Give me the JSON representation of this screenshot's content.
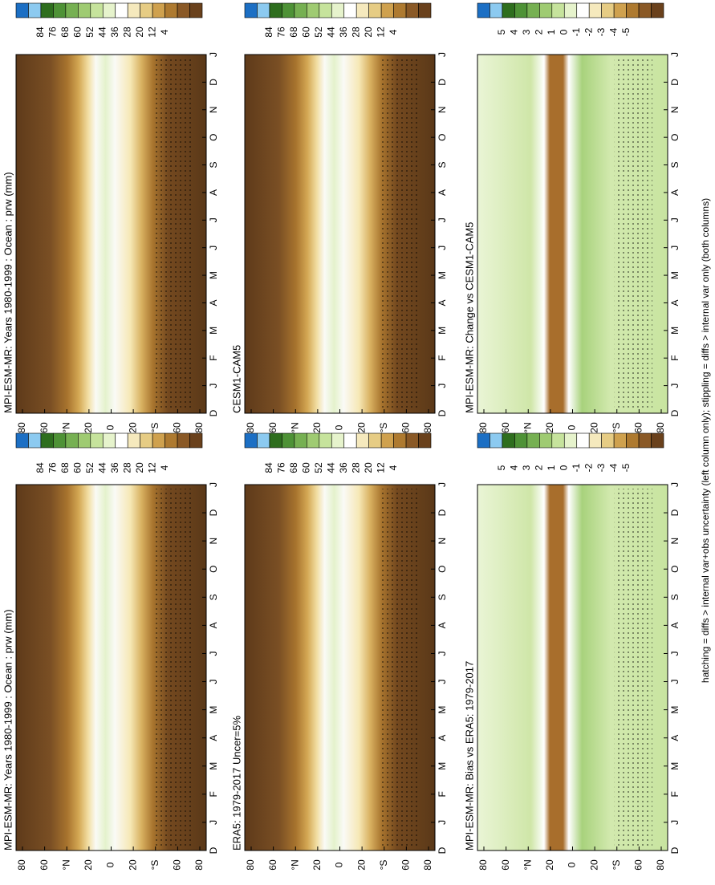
{
  "panels": [
    {
      "title": "MPI-ESM-MR: Years 1980-1999 : Ocean : prw (mm)",
      "kind": "abs"
    },
    {
      "title": "ERA5: 1979-2017 Uncer=5%",
      "kind": "abs"
    },
    {
      "title": "MPI-ESM-MR: Bias vs ERA5: 1979-2017",
      "kind": "diff"
    },
    {
      "title": "MPI-ESM-MR: Years 1980-1999 : Ocean : prw (mm)",
      "kind": "abs"
    },
    {
      "title": "CESM1-CAM5",
      "kind": "abs"
    },
    {
      "title": "MPI-ESM-MR: Change vs CESM1-CAM5",
      "kind": "diff"
    }
  ],
  "abs_levels": [
    "84",
    "76",
    "68",
    "60",
    "52",
    "44",
    "36",
    "28",
    "20",
    "12",
    "4"
  ],
  "diff_levels": [
    "5",
    "4",
    "3",
    "2",
    "1",
    "0",
    "-1",
    "-2",
    "-3",
    "-4",
    "-5"
  ],
  "colorbar_colors": [
    "#1c6fc4",
    "#8ccaf0",
    "#2e6e1e",
    "#4e9236",
    "#76b052",
    "#9fcb72",
    "#c6e39c",
    "#e6f3cc",
    "#ffffff",
    "#f5e9bd",
    "#e6cc84",
    "#cfa14e",
    "#ae7a30",
    "#8a5926",
    "#6a411c"
  ],
  "lat_labels": [
    "80",
    "60",
    "°N",
    "20",
    "0",
    "20",
    "°S",
    "60",
    "80"
  ],
  "month_labels": [
    "D",
    "J",
    "F",
    "M",
    "A",
    "M",
    "J",
    "J",
    "A",
    "S",
    "O",
    "N",
    "D",
    "J"
  ],
  "footer": "hatching = diffs > internal var+obs uncertainty (left column only); stippling = diffs > internal var only (both columns)"
}
